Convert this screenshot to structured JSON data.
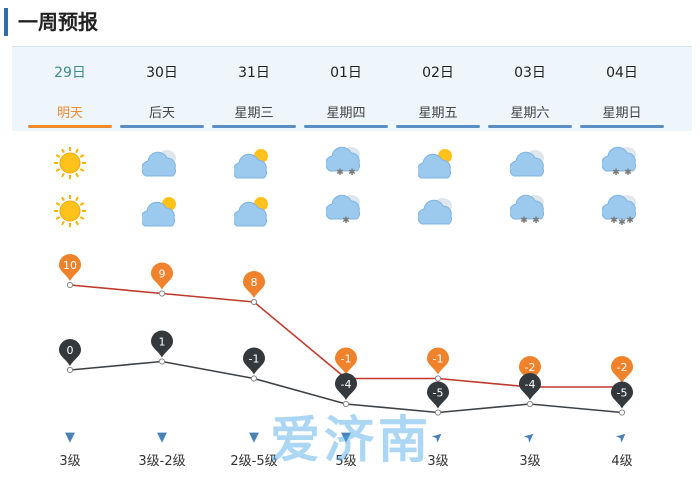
{
  "header": {
    "title": "一周预报"
  },
  "days": [
    {
      "date": "29日",
      "label": "明天",
      "day_icon": "sun-icon",
      "night_icon": "sun-icon",
      "wind": "3级",
      "wind_dir_icon": "wind-arrow-down-icon"
    },
    {
      "date": "30日",
      "label": "后天",
      "day_icon": "cloud-icon",
      "night_icon": "partly-cloudy-icon",
      "wind": "3级-2级",
      "wind_dir_icon": "wind-arrow-down-icon"
    },
    {
      "date": "31日",
      "label": "星期三",
      "day_icon": "partly-cloudy-icon",
      "night_icon": "partly-cloudy-icon",
      "wind": "2级-5级",
      "wind_dir_icon": "wind-arrow-down-icon"
    },
    {
      "date": "01日",
      "label": "星期四",
      "day_icon": "snow-icon",
      "night_icon": "light-snow-icon",
      "wind": "5级",
      "wind_dir_icon": "wind-arrow-down-icon"
    },
    {
      "date": "02日",
      "label": "星期五",
      "day_icon": "partly-cloudy-icon",
      "night_icon": "cloud-icon",
      "wind": "3级",
      "wind_dir_icon": "wind-arrow-ne-icon"
    },
    {
      "date": "03日",
      "label": "星期六",
      "day_icon": "cloud-icon",
      "night_icon": "snow-icon",
      "wind": "3级",
      "wind_dir_icon": "wind-arrow-ne-icon"
    },
    {
      "date": "04日",
      "label": "星期日",
      "day_icon": "snow-icon",
      "night_icon": "heavy-snow-icon",
      "wind": "4级",
      "wind_dir_icon": "wind-arrow-ne-icon"
    }
  ],
  "selected_index": 0,
  "watermark": "爱济南",
  "colors": {
    "high_line": "#c0392b",
    "low_line": "#3d4246",
    "high_pin": "#f0822c",
    "low_pin": "#34393e",
    "accent": "#f08a2c",
    "tab_underline": "#5b8fc3"
  },
  "chart_data": {
    "type": "line",
    "categories": [
      "29日",
      "30日",
      "31日",
      "01日",
      "02日",
      "03日",
      "04日"
    ],
    "series": [
      {
        "values": [
          10,
          9,
          8,
          -1,
          -1,
          -2,
          -2
        ]
      },
      {
        "values": [
          0,
          1,
          -1,
          -4,
          -5,
          -4,
          -5
        ]
      }
    ],
    "labels_high": [
      "10",
      "9",
      "8",
      "-1",
      "-1",
      "-2",
      "-2"
    ],
    "labels_low": [
      "0",
      "1",
      "-1",
      "-4",
      "-5",
      "-4",
      "-5"
    ],
    "grid": false
  }
}
